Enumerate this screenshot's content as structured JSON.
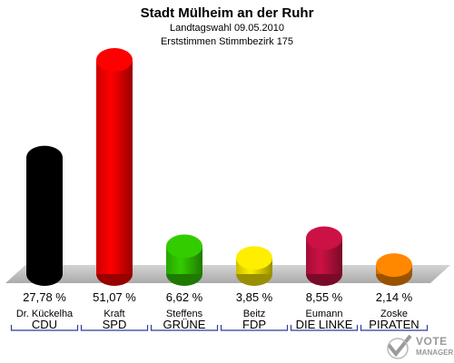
{
  "header": {
    "title": "Stadt Mülheim an der Ruhr",
    "subtitle1": "Landtagswahl 09.05.2010",
    "subtitle2": "Erststimmen Stimmbezirk 175"
  },
  "logo": {
    "line1": "VOTE",
    "line2": "MANAGER"
  },
  "chart_data": {
    "type": "bar",
    "title": "Stadt Mülheim an der Ruhr",
    "subtitle": "Landtagswahl 09.05.2010 / Erststimmen Stimmbezirk 175",
    "categories": [
      "CDU",
      "SPD",
      "GRÜNE",
      "FDP",
      "DIE LINKE",
      "PIRATEN"
    ],
    "candidates": [
      "Dr. Kückelha",
      "Kraft",
      "Steffens",
      "Beitz",
      "Eumann",
      "Zoske"
    ],
    "values": [
      27.78,
      51.07,
      6.62,
      3.85,
      8.55,
      2.14
    ],
    "value_labels": [
      "27,78 %",
      "51,07 %",
      "6,62 %",
      "3,85 %",
      "8,55 %",
      "2,14 %"
    ],
    "colors": [
      "#000000",
      "#ff0000",
      "#33cc00",
      "#ffee00",
      "#cc1144",
      "#ff8800"
    ],
    "ylim": [
      0,
      51.07
    ]
  }
}
